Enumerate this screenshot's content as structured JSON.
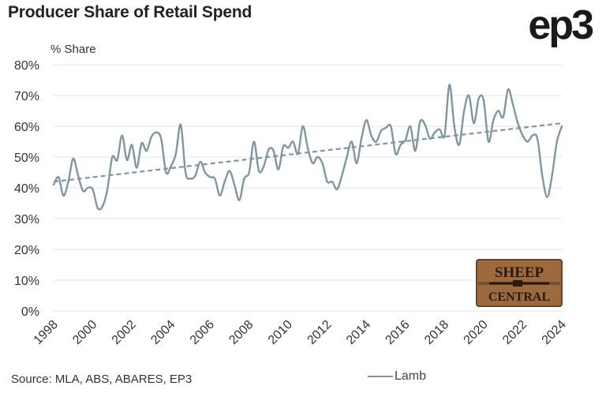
{
  "title": "Producer Share of Retail Spend",
  "logo_text": "ep3",
  "source": "Source: MLA, ABS, ABARES, EP3",
  "watermark": {
    "line1": "SHEEP",
    "line2": "CENTRAL"
  },
  "colors": {
    "series": "#7f97a2",
    "trend": "#7f97a2",
    "grid": "#e3e3e3",
    "wood": "#9c6a3e"
  },
  "chart_data": {
    "type": "line",
    "ylabel": "% Share",
    "ylim": [
      0,
      80
    ],
    "yticks": [
      "0%",
      "10%",
      "20%",
      "30%",
      "40%",
      "50%",
      "60%",
      "70%",
      "80%"
    ],
    "xlim": [
      1998,
      2024
    ],
    "xticks": [
      "1998",
      "2000",
      "2002",
      "2004",
      "2006",
      "2008",
      "2010",
      "2012",
      "2014",
      "2016",
      "2018",
      "2020",
      "2022",
      "2024"
    ],
    "grid": "horizontal",
    "legend_position": "bottom-right",
    "series": [
      {
        "name": "Lamb",
        "x": [
          1998.0,
          1998.25,
          1998.5,
          1998.75,
          1999.0,
          1999.25,
          1999.5,
          1999.75,
          2000.0,
          2000.25,
          2000.5,
          2000.75,
          2001.0,
          2001.25,
          2001.5,
          2001.75,
          2002.0,
          2002.25,
          2002.5,
          2002.75,
          2003.0,
          2003.25,
          2003.5,
          2003.75,
          2004.0,
          2004.25,
          2004.5,
          2004.75,
          2005.0,
          2005.25,
          2005.5,
          2005.75,
          2006.0,
          2006.25,
          2006.5,
          2006.75,
          2007.0,
          2007.25,
          2007.5,
          2007.75,
          2008.0,
          2008.25,
          2008.5,
          2008.75,
          2009.0,
          2009.25,
          2009.5,
          2009.75,
          2010.0,
          2010.25,
          2010.5,
          2010.75,
          2011.0,
          2011.25,
          2011.5,
          2011.75,
          2012.0,
          2012.25,
          2012.5,
          2012.75,
          2013.0,
          2013.25,
          2013.5,
          2013.75,
          2014.0,
          2014.25,
          2014.5,
          2014.75,
          2015.0,
          2015.25,
          2015.5,
          2015.75,
          2016.0,
          2016.25,
          2016.5,
          2016.75,
          2017.0,
          2017.25,
          2017.5,
          2017.75,
          2018.0,
          2018.25,
          2018.5,
          2018.75,
          2019.0,
          2019.25,
          2019.5,
          2019.75,
          2020.0,
          2020.25,
          2020.5,
          2020.75,
          2021.0,
          2021.25,
          2021.5,
          2021.75,
          2022.0,
          2022.25,
          2022.5,
          2022.75,
          2023.0,
          2023.25,
          2023.5,
          2023.75,
          2024.0
        ],
        "values": [
          41,
          43.5,
          37.5,
          42,
          49.5,
          44,
          39,
          40,
          39.5,
          33.5,
          34,
          39.5,
          50,
          49,
          57,
          49,
          54,
          46.5,
          54.5,
          52,
          56.5,
          58,
          56,
          45,
          47,
          51,
          60.5,
          45,
          43,
          44,
          48.5,
          45,
          43.5,
          43,
          37.5,
          42,
          45.5,
          41,
          36,
          43,
          45,
          55,
          45.5,
          47,
          52.5,
          52,
          46,
          53.5,
          53,
          55,
          51,
          60,
          53,
          48,
          50,
          48,
          42,
          42,
          39.5,
          44,
          50,
          55,
          48,
          56,
          62,
          57,
          55,
          58.5,
          59.5,
          60,
          51,
          54,
          55.5,
          60,
          52,
          61.5,
          60.5,
          56,
          58,
          59,
          57,
          73.5,
          60,
          54,
          65,
          70,
          61,
          69,
          68.5,
          55,
          62,
          65,
          63,
          72,
          67,
          61,
          57,
          55,
          57,
          56,
          44,
          37,
          44,
          55,
          60
        ]
      }
    ],
    "trend": {
      "name": "",
      "x": [
        1998,
        2024
      ],
      "values": [
        42,
        61
      ]
    }
  }
}
